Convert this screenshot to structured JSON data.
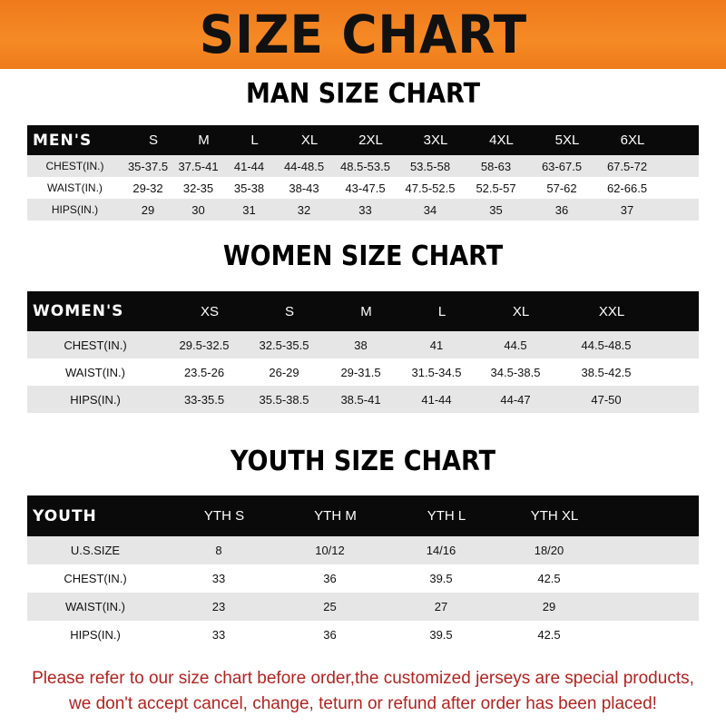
{
  "title": "SIZE CHART",
  "men": {
    "heading": "MAN SIZE CHART",
    "columns": [
      "MEN'S",
      "S",
      "M",
      "L",
      "XL",
      "2XL",
      "3XL",
      "4XL",
      "5XL",
      "6XL"
    ],
    "rows": [
      [
        "CHEST(IN.)",
        "35-37.5",
        "37.5-41",
        "41-44",
        "44-48.5",
        "48.5-53.5",
        "53.5-58",
        "58-63",
        "63-67.5",
        "67.5-72"
      ],
      [
        "WAIST(IN.)",
        "29-32",
        "32-35",
        "35-38",
        "38-43",
        "43-47.5",
        "47.5-52.5",
        "52.5-57",
        "57-62",
        "62-66.5"
      ],
      [
        "HIPS(IN.)",
        "29",
        "30",
        "31",
        "32",
        "33",
        "34",
        "35",
        "36",
        "37"
      ]
    ]
  },
  "women": {
    "heading": "WOMEN SIZE CHART",
    "columns": [
      "WOMEN'S",
      "XS",
      "S",
      "M",
      "L",
      "XL",
      "XXL"
    ],
    "rows": [
      [
        "CHEST(IN.)",
        "29.5-32.5",
        "32.5-35.5",
        "38",
        "41",
        "44.5",
        "44.5-48.5"
      ],
      [
        "WAIST(IN.)",
        "23.5-26",
        "26-29",
        "29-31.5",
        "31.5-34.5",
        "34.5-38.5",
        "38.5-42.5"
      ],
      [
        "HIPS(IN.)",
        "33-35.5",
        "35.5-38.5",
        "38.5-41",
        "41-44",
        "44-47",
        "47-50"
      ]
    ]
  },
  "youth": {
    "heading": "YOUTH SIZE CHART",
    "columns": [
      "YOUTH",
      "YTH S",
      "YTH M",
      "YTH L",
      "YTH XL"
    ],
    "rows": [
      [
        "U.S.SIZE",
        "8",
        "10/12",
        "14/16",
        "18/20"
      ],
      [
        "CHEST(IN.)",
        "33",
        "36",
        "39.5",
        "42.5"
      ],
      [
        "WAIST(IN.)",
        "23",
        "25",
        "27",
        "29"
      ],
      [
        "HIPS(IN.)",
        "33",
        "36",
        "39.5",
        "42.5"
      ]
    ]
  },
  "notice": {
    "line1": "Please refer to our size chart before order,the customized jerseys are special products,",
    "line2": "we don't accept cancel, change, teturn or refund after order has been placed!"
  },
  "colors": {
    "banner": "#f58a25",
    "header_row": "#0a0a0a",
    "stripe": "#e6e6e6",
    "notice": "#b3231f"
  }
}
